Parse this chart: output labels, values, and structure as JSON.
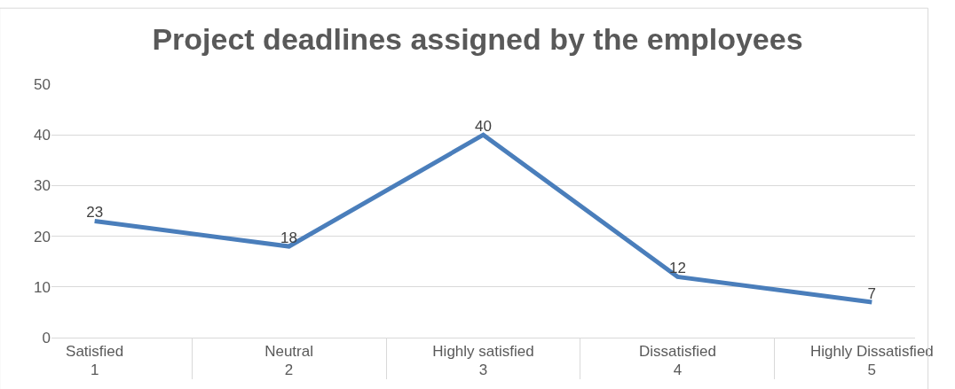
{
  "chart_data": {
    "type": "line",
    "title": "Project deadlines assigned by the employees",
    "categories": [
      "Satisfied\n1",
      "Neutral\n2",
      "Highly satisfied\n3",
      "Dissatisfied\n4",
      "Highly Dissatisfied\n5"
    ],
    "series": [
      {
        "color": "#4a7ebb",
        "values": [
          23,
          18,
          40,
          12,
          7
        ]
      }
    ],
    "ylim": [
      0,
      50
    ],
    "yticks": [
      0,
      10,
      20,
      30,
      40,
      50
    ],
    "grid": "y",
    "legend": false,
    "marker": "none",
    "line_style": "solid",
    "data_labels": true
  }
}
